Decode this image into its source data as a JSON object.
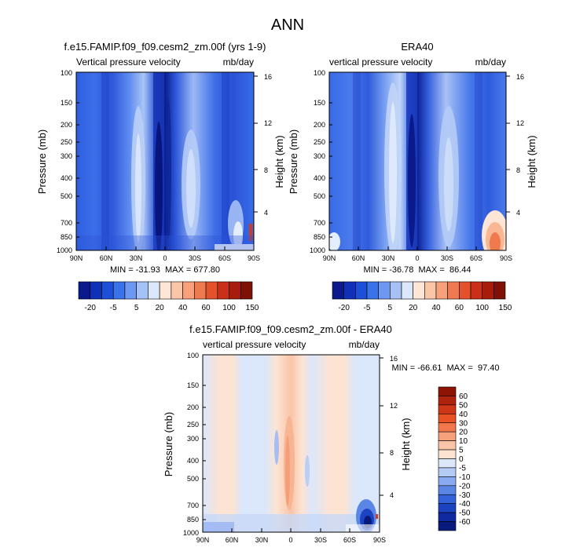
{
  "figure": {
    "title": "ANN"
  },
  "chart_data": [
    {
      "type": "heatmap",
      "id": "model",
      "title": "f.e15.FAMIP.f09_f09.cesm2_zm.00f (yrs 1-9)",
      "left_label": "Vertical pressure velocity",
      "right_label": "mb/day",
      "xlabel": "",
      "ylabel": "Pressure (mb)",
      "y2label": "Height (km)",
      "xticks": [
        "90N",
        "60N",
        "30N",
        "0",
        "30S",
        "60S",
        "90S"
      ],
      "xtick_values": [
        90,
        60,
        30,
        0,
        -30,
        -60,
        -90
      ],
      "yticks": [
        "100",
        "150",
        "200",
        "250",
        "300",
        "400",
        "500",
        "700",
        "850",
        "1000"
      ],
      "ytick_values": [
        100,
        150,
        200,
        250,
        300,
        400,
        500,
        700,
        850,
        1000
      ],
      "y2ticks": [
        "16",
        "12",
        "8",
        "4"
      ],
      "y2tick_values": [
        16,
        12,
        8,
        4
      ],
      "ylim": [
        1000,
        100
      ],
      "xlim": [
        90,
        -90
      ],
      "stats": "MIN = -31.93  MAX = 677.80",
      "min": -31.93,
      "max": 677.8
    },
    {
      "type": "heatmap",
      "id": "obs",
      "title": "ERA40",
      "left_label": "vertical pressure velocity",
      "right_label": "mb/day",
      "xlabel": "",
      "ylabel": "Pressure (mb)",
      "y2label": "Height (km)",
      "xticks": [
        "90N",
        "60N",
        "30N",
        "0",
        "30S",
        "60S",
        "90S"
      ],
      "xtick_values": [
        90,
        60,
        30,
        0,
        -30,
        -60,
        -90
      ],
      "yticks": [
        "100",
        "150",
        "200",
        "250",
        "300",
        "400",
        "500",
        "700",
        "850",
        "1000"
      ],
      "ytick_values": [
        100,
        150,
        200,
        250,
        300,
        400,
        500,
        700,
        850,
        1000
      ],
      "y2ticks": [
        "16",
        "12",
        "8",
        "4"
      ],
      "y2tick_values": [
        16,
        12,
        8,
        4
      ],
      "ylim": [
        1000,
        100
      ],
      "xlim": [
        90,
        -90
      ],
      "stats": "MIN = -36.78  MAX =  86.44",
      "min": -36.78,
      "max": 86.44
    },
    {
      "type": "heatmap",
      "id": "diff",
      "title": "f.e15.FAMIP.f09_f09.cesm2_zm.00f - ERA40",
      "left_label": "vertical pressure velocity",
      "right_label": "mb/day",
      "xlabel": "",
      "ylabel": "Pressure (mb)",
      "y2label": "Height (km)",
      "xticks": [
        "90N",
        "60N",
        "30N",
        "0",
        "30S",
        "60S",
        "90S"
      ],
      "xtick_values": [
        90,
        60,
        30,
        0,
        -30,
        -60,
        -90
      ],
      "yticks": [
        "100",
        "150",
        "200",
        "250",
        "300",
        "400",
        "500",
        "700",
        "850",
        "1000"
      ],
      "ytick_values": [
        100,
        150,
        200,
        250,
        300,
        400,
        500,
        700,
        850,
        1000
      ],
      "y2ticks": [
        "16",
        "12",
        "8",
        "4"
      ],
      "y2tick_values": [
        16,
        12,
        8,
        4
      ],
      "ylim": [
        1000,
        100
      ],
      "xlim": [
        90,
        -90
      ],
      "stats": "MIN = -66.61  MAX =  97.40",
      "min": -66.61,
      "max": 97.4
    }
  ],
  "colorbars": {
    "main": {
      "labels": [
        "-20",
        "-5",
        "5",
        "20",
        "40",
        "60",
        "100",
        "150"
      ],
      "colors": [
        "#0a1a8c",
        "#1030b8",
        "#1e4fd8",
        "#3a72ea",
        "#6e97f2",
        "#a6c1f6",
        "#dbe7fb",
        "#fde6d6",
        "#fbc6a8",
        "#f7a07a",
        "#f07a50",
        "#e4522c",
        "#cc2f17",
        "#a81c0c",
        "#7e1006"
      ]
    },
    "diff": {
      "labels": [
        "60",
        "50",
        "40",
        "30",
        "20",
        "10",
        "5",
        "0",
        "-5",
        "-10",
        "-20",
        "-30",
        "-40",
        "-50",
        "-60"
      ],
      "colors": [
        "#8e1406",
        "#b0230f",
        "#cf3517",
        "#e85225",
        "#f2784c",
        "#f6a07c",
        "#f9c4a8",
        "#fde3d2",
        "#dbe7fb",
        "#b4cbf6",
        "#89aaf0",
        "#5a86e6",
        "#3462d8",
        "#1c43c0",
        "#0f2aa0",
        "#081a7c"
      ]
    }
  }
}
